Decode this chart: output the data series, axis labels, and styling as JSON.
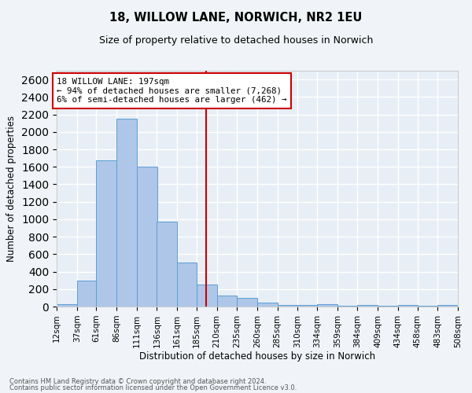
{
  "title": "18, WILLOW LANE, NORWICH, NR2 1EU",
  "subtitle": "Size of property relative to detached houses in Norwich",
  "xlabel": "Distribution of detached houses by size in Norwich",
  "ylabel": "Number of detached properties",
  "bin_edges": [
    12,
    37,
    61,
    86,
    111,
    136,
    161,
    185,
    210,
    235,
    260,
    285,
    310,
    334,
    359,
    384,
    409,
    434,
    458,
    483,
    508
  ],
  "bar_heights": [
    25,
    300,
    1670,
    2150,
    1600,
    970,
    500,
    250,
    130,
    100,
    45,
    20,
    15,
    25,
    5,
    20,
    5,
    20,
    5,
    20
  ],
  "bar_color": "#aec6e8",
  "bar_edge_color": "#5a9fd4",
  "vline_x": 197,
  "vline_color": "#cc0000",
  "annotation_line1": "18 WILLOW LANE: 197sqm",
  "annotation_line2": "← 94% of detached houses are smaller (7,268)",
  "annotation_line3": "6% of semi-detached houses are larger (462) →",
  "annotation_box_color": "#ffffff",
  "annotation_box_edge_color": "#cc0000",
  "ylim": [
    0,
    2700
  ],
  "yticks": [
    0,
    200,
    400,
    600,
    800,
    1000,
    1200,
    1400,
    1600,
    1800,
    2000,
    2200,
    2400,
    2600
  ],
  "background_color": "#e8eef5",
  "grid_color": "#ffffff",
  "footer_line1": "Contains HM Land Registry data © Crown copyright and database right 2024.",
  "footer_line2": "Contains public sector information licensed under the Open Government Licence v3.0.",
  "fig_bg_color": "#f0f4f8"
}
